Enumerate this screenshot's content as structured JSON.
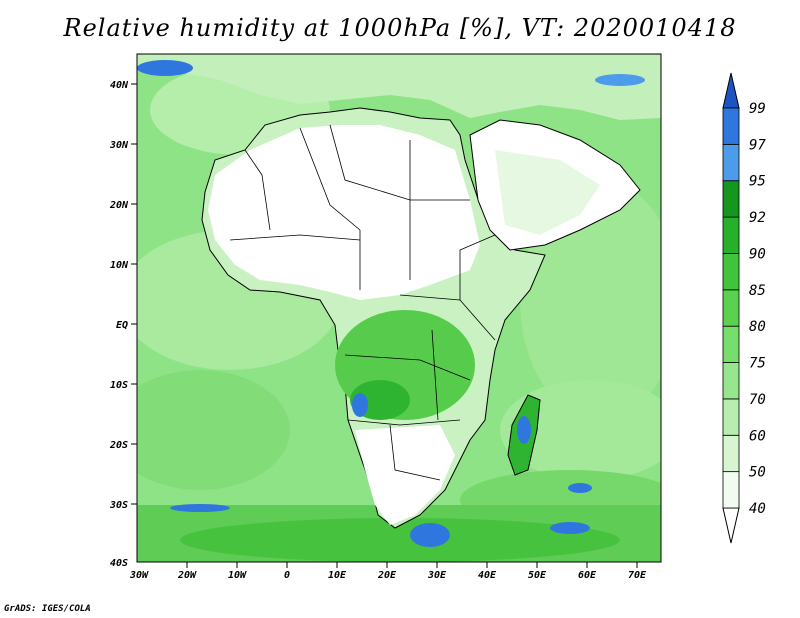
{
  "title": "Relative humidity at 1000hPa [%], VT: 2020010418",
  "credit": "GrADS: IGES/COLA",
  "map": {
    "lat_labels": [
      "40N",
      "30N",
      "20N",
      "10N",
      "EQ",
      "10S",
      "20S",
      "30S",
      "40S"
    ],
    "lon_labels": [
      "30W",
      "20W",
      "10W",
      "0",
      "10E",
      "20E",
      "30E",
      "40E",
      "50E",
      "60E",
      "70E"
    ]
  },
  "colorbar": {
    "levels": [
      "40",
      "50",
      "60",
      "70",
      "75",
      "80",
      "85",
      "90",
      "92",
      "95",
      "97",
      "99"
    ],
    "colors": [
      "#f2fbf0",
      "#d6f5d0",
      "#b7eeaf",
      "#97e68d",
      "#77dd6c",
      "#5ad250",
      "#3fc43a",
      "#27b02a",
      "#15961f",
      "#4d9cec",
      "#2f77de",
      "#1b55c3"
    ],
    "under_color": "#ffffff",
    "over_color": "#1b55c3"
  }
}
